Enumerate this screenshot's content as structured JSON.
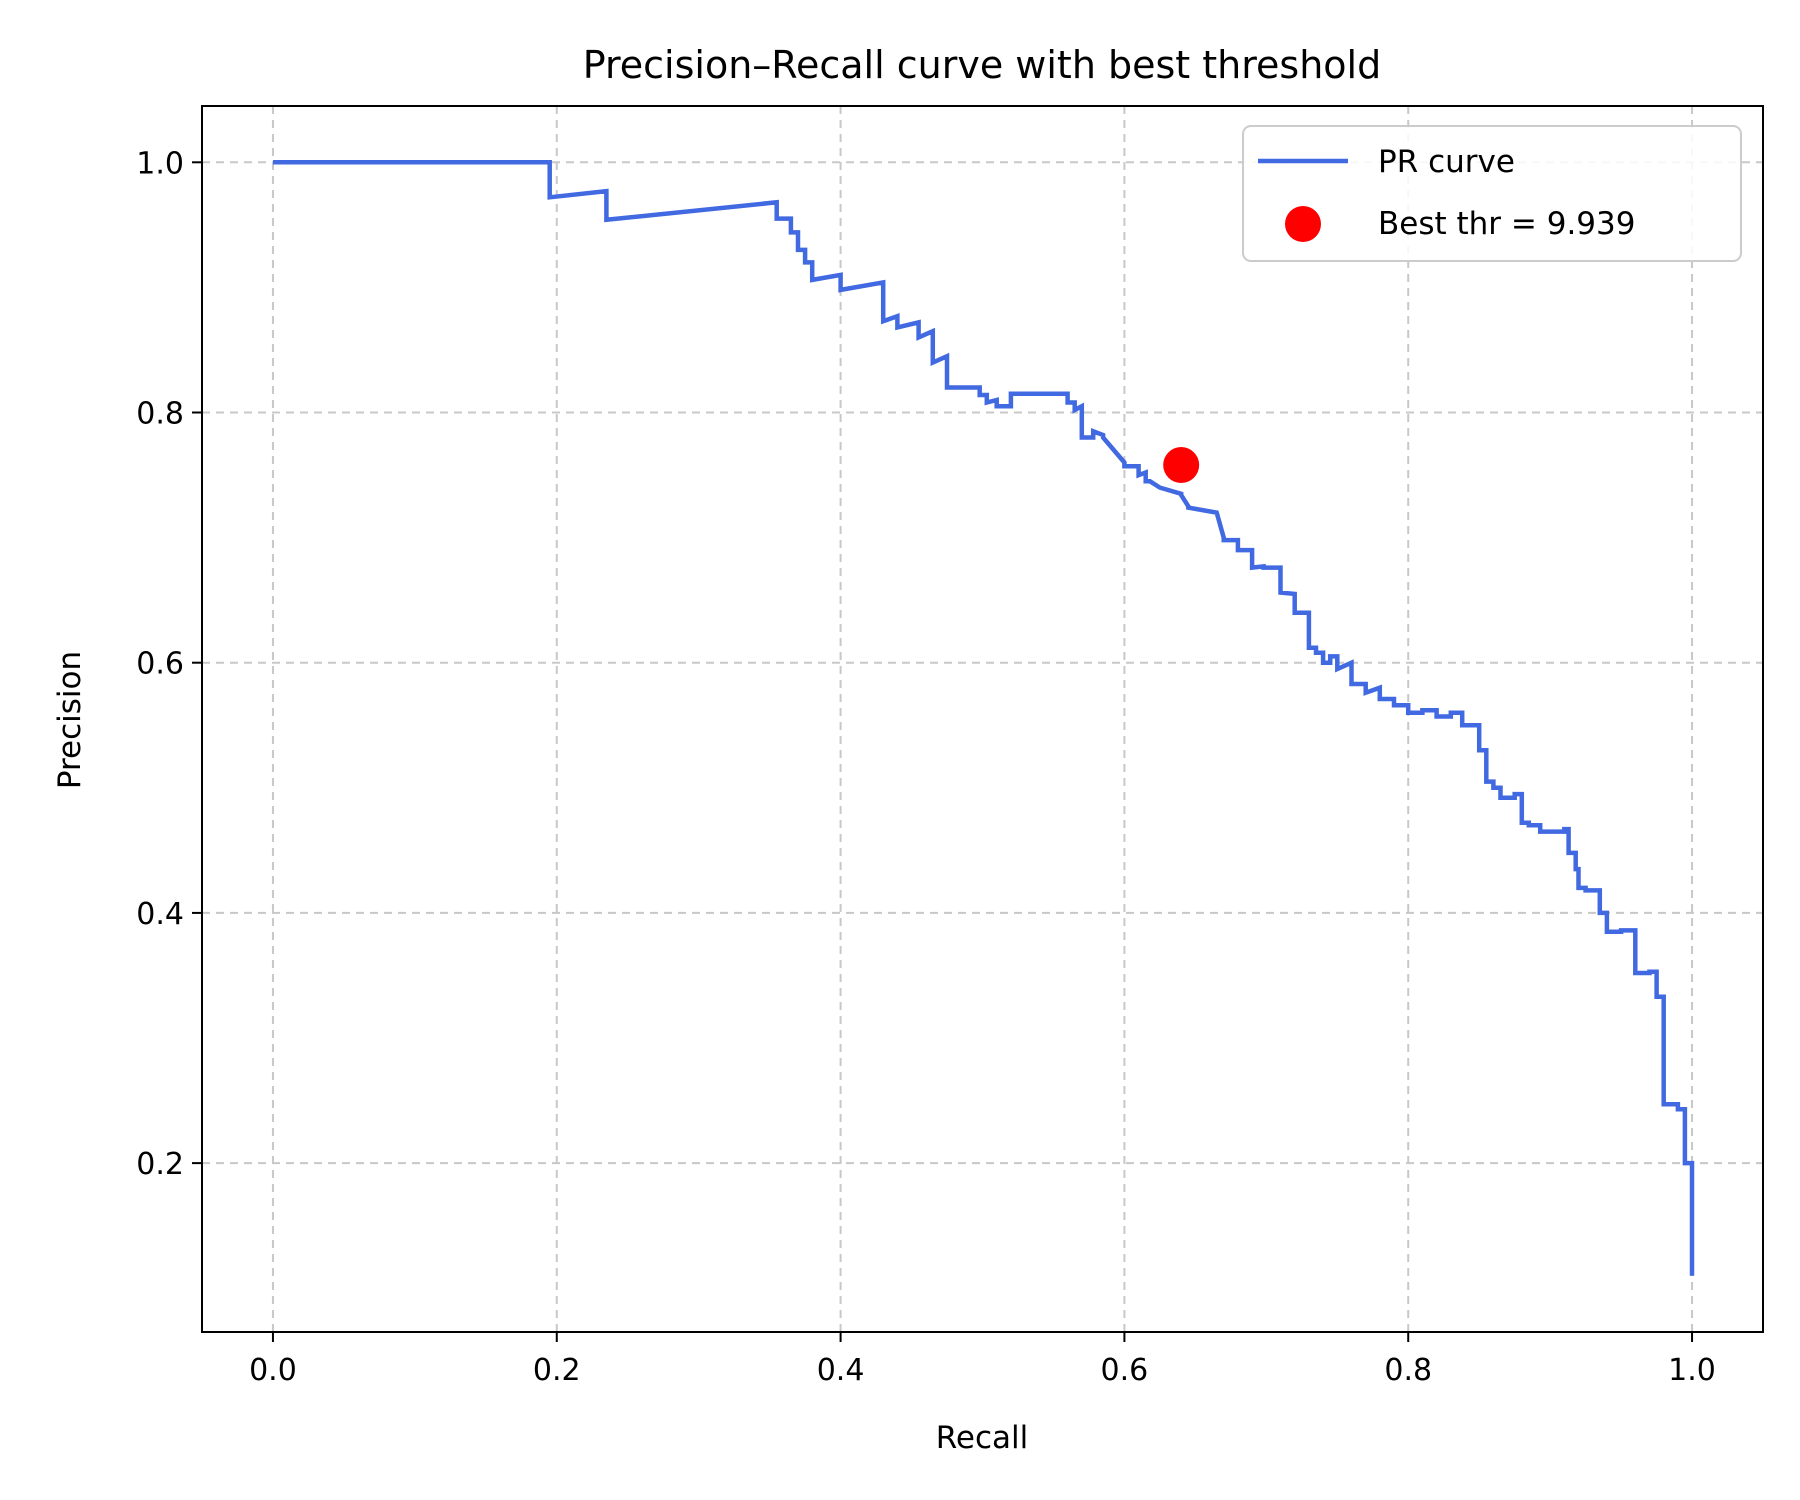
{
  "chart_data": {
    "type": "line",
    "title": "Precision–Recall curve with best threshold",
    "xlabel": "Recall",
    "ylabel": "Precision",
    "xlim": [
      -0.05,
      1.05
    ],
    "ylim": [
      0.065,
      1.045
    ],
    "xticks": [
      0.0,
      0.2,
      0.4,
      0.6,
      0.8,
      1.0
    ],
    "xtick_labels": [
      "0.0",
      "0.2",
      "0.4",
      "0.6",
      "0.8",
      "1.0"
    ],
    "yticks": [
      0.2,
      0.4,
      0.6,
      0.8,
      1.0
    ],
    "ytick_labels": [
      "0.2",
      "0.4",
      "0.6",
      "0.8",
      "1.0"
    ],
    "grid": true,
    "legend_position": "top-right",
    "series": [
      {
        "name": "PR curve",
        "color": "#4169e1",
        "x": [
          0.0,
          0.195,
          0.195,
          0.235,
          0.235,
          0.355,
          0.355,
          0.365,
          0.365,
          0.37,
          0.37,
          0.375,
          0.375,
          0.38,
          0.38,
          0.4,
          0.4,
          0.43,
          0.43,
          0.44,
          0.44,
          0.455,
          0.455,
          0.465,
          0.465,
          0.475,
          0.475,
          0.498,
          0.498,
          0.503,
          0.503,
          0.51,
          0.51,
          0.52,
          0.52,
          0.56,
          0.56,
          0.565,
          0.565,
          0.57,
          0.57,
          0.578,
          0.578,
          0.585,
          0.585,
          0.6,
          0.6,
          0.61,
          0.61,
          0.615,
          0.615,
          0.618,
          0.618,
          0.625,
          0.625,
          0.64,
          0.64,
          0.645,
          0.645,
          0.665,
          0.665,
          0.67,
          0.67,
          0.68,
          0.68,
          0.69,
          0.69,
          0.698,
          0.698,
          0.71,
          0.71,
          0.72,
          0.72,
          0.73,
          0.73,
          0.735,
          0.735,
          0.74,
          0.74,
          0.745,
          0.745,
          0.75,
          0.75,
          0.76,
          0.76,
          0.77,
          0.77,
          0.78,
          0.78,
          0.79,
          0.79,
          0.8,
          0.8,
          0.81,
          0.81,
          0.82,
          0.82,
          0.83,
          0.83,
          0.838,
          0.838,
          0.85,
          0.85,
          0.855,
          0.855,
          0.86,
          0.86,
          0.865,
          0.865,
          0.875,
          0.875,
          0.88,
          0.88,
          0.885,
          0.885,
          0.893,
          0.893,
          0.91,
          0.91,
          0.913,
          0.913,
          0.918,
          0.918,
          0.92,
          0.92,
          0.925,
          0.925,
          0.935,
          0.935,
          0.94,
          0.94,
          0.95,
          0.95,
          0.96,
          0.96,
          0.97,
          0.97,
          0.975,
          0.975,
          0.98,
          0.98,
          0.99,
          0.99,
          0.995,
          0.995,
          1.0,
          1.0
        ],
        "y": [
          1.0,
          1.0,
          0.972,
          0.977,
          0.954,
          0.968,
          0.955,
          0.955,
          0.944,
          0.944,
          0.93,
          0.93,
          0.92,
          0.92,
          0.906,
          0.91,
          0.898,
          0.904,
          0.873,
          0.877,
          0.868,
          0.872,
          0.86,
          0.865,
          0.84,
          0.845,
          0.82,
          0.82,
          0.814,
          0.814,
          0.808,
          0.81,
          0.805,
          0.805,
          0.815,
          0.815,
          0.808,
          0.808,
          0.802,
          0.805,
          0.78,
          0.78,
          0.785,
          0.782,
          0.78,
          0.76,
          0.757,
          0.757,
          0.75,
          0.752,
          0.745,
          0.745,
          0.745,
          0.74,
          0.74,
          0.735,
          0.734,
          0.725,
          0.724,
          0.72,
          0.72,
          0.7,
          0.698,
          0.698,
          0.69,
          0.69,
          0.676,
          0.677,
          0.676,
          0.676,
          0.656,
          0.655,
          0.64,
          0.64,
          0.612,
          0.612,
          0.608,
          0.608,
          0.6,
          0.6,
          0.605,
          0.605,
          0.595,
          0.6,
          0.583,
          0.583,
          0.576,
          0.58,
          0.571,
          0.571,
          0.566,
          0.566,
          0.56,
          0.56,
          0.562,
          0.562,
          0.557,
          0.557,
          0.56,
          0.56,
          0.55,
          0.55,
          0.53,
          0.53,
          0.505,
          0.505,
          0.5,
          0.5,
          0.492,
          0.492,
          0.495,
          0.495,
          0.472,
          0.472,
          0.47,
          0.47,
          0.465,
          0.465,
          0.467,
          0.467,
          0.448,
          0.448,
          0.435,
          0.435,
          0.42,
          0.42,
          0.418,
          0.418,
          0.4,
          0.4,
          0.385,
          0.385,
          0.386,
          0.386,
          0.352,
          0.352,
          0.353,
          0.353,
          0.333,
          0.333,
          0.247,
          0.247,
          0.243,
          0.243,
          0.2,
          0.2,
          0.11
        ]
      },
      {
        "name": "Best thr = 9.939",
        "type": "scatter",
        "color": "#ff0000",
        "x": [
          0.64
        ],
        "y": [
          0.758
        ]
      }
    ]
  }
}
